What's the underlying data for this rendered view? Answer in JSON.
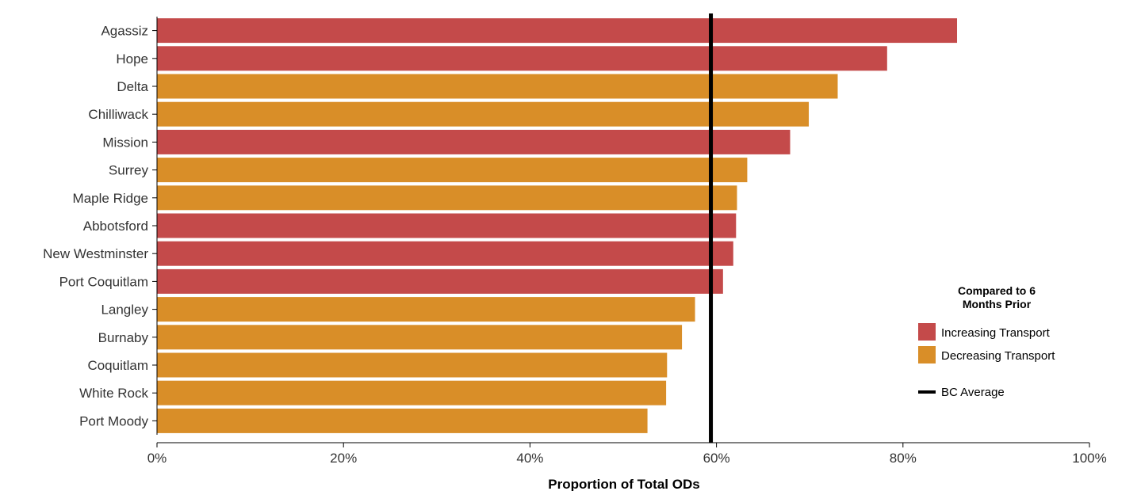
{
  "chart_data": {
    "type": "bar",
    "orientation": "horizontal",
    "title": "",
    "xlabel": "Proportion of Total ODs",
    "ylabel": "",
    "xlim": [
      0,
      1
    ],
    "x_ticks": [
      0,
      0.2,
      0.4,
      0.6,
      0.8,
      1.0
    ],
    "x_tick_labels": [
      "0%",
      "20%",
      "40%",
      "60%",
      "80%",
      "100%"
    ],
    "grid": false,
    "categories": [
      "Agassiz",
      "Hope",
      "Delta",
      "Chilliwack",
      "Mission",
      "Surrey",
      "Maple Ridge",
      "Abbotsford",
      "New Westminster",
      "Port Coquitlam",
      "Langley",
      "Burnaby",
      "Coquitlam",
      "White Rock",
      "Port Moody"
    ],
    "values": [
      0.858,
      0.783,
      0.73,
      0.699,
      0.679,
      0.633,
      0.622,
      0.621,
      0.618,
      0.607,
      0.577,
      0.563,
      0.547,
      0.546,
      0.526
    ],
    "groups": [
      "Increasing Transport",
      "Increasing Transport",
      "Decreasing Transport",
      "Decreasing Transport",
      "Increasing Transport",
      "Decreasing Transport",
      "Decreasing Transport",
      "Increasing Transport",
      "Increasing Transport",
      "Increasing Transport",
      "Decreasing Transport",
      "Decreasing Transport",
      "Decreasing Transport",
      "Decreasing Transport",
      "Decreasing Transport"
    ],
    "reference_line": {
      "label": "BC Average",
      "value": 0.594,
      "color": "#000000"
    },
    "legend": {
      "title": "Compared to 6 Months Prior",
      "title_lines": [
        "Compared to 6",
        "Months Prior"
      ],
      "position": "right",
      "items": [
        {
          "label": "Increasing Transport",
          "color": "#c44a4a"
        },
        {
          "label": "Decreasing Transport",
          "color": "#d98e28"
        }
      ],
      "line_item": {
        "label": "BC Average",
        "color": "#000000"
      }
    }
  }
}
